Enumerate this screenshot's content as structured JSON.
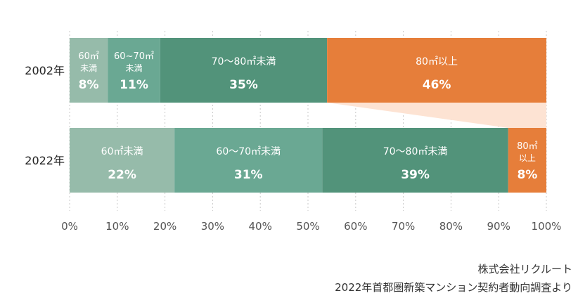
{
  "chart_data": {
    "type": "bar",
    "orientation": "horizontal",
    "stacked": "percent",
    "categories": [
      "2002年",
      "2022年"
    ],
    "series": [
      {
        "color": "#96bbaa",
        "labels": [
          [
            "60㎡",
            "未満"
          ],
          [
            "60㎡未満"
          ]
        ],
        "values": [
          8,
          22
        ]
      },
      {
        "color": "#6aa893",
        "labels": [
          [
            "60~70㎡",
            "未満"
          ],
          [
            "60〜70㎡未満"
          ]
        ],
        "values": [
          11,
          31
        ]
      },
      {
        "color": "#52937a",
        "labels": [
          [
            "70〜80㎡未満"
          ],
          [
            "70〜80㎡未満"
          ]
        ],
        "values": [
          35,
          39
        ]
      },
      {
        "color": "#e67e3a",
        "labels": [
          [
            "80㎡以上"
          ],
          [
            "80㎡",
            "以上"
          ]
        ],
        "values": [
          46,
          8
        ]
      }
    ],
    "value_suffix": "%",
    "xlim": [
      0,
      100
    ],
    "xticks": [
      "0%",
      "10%",
      "20%",
      "30%",
      "40%",
      "50%",
      "60%",
      "70%",
      "80%",
      "90%",
      "100%"
    ],
    "connector_color": "#fde3d3",
    "grid": "dashed vertical"
  },
  "source": {
    "line1": "株式会社リクルート",
    "line2": "2022年首都圏新築マンション契約者動向調査より"
  }
}
